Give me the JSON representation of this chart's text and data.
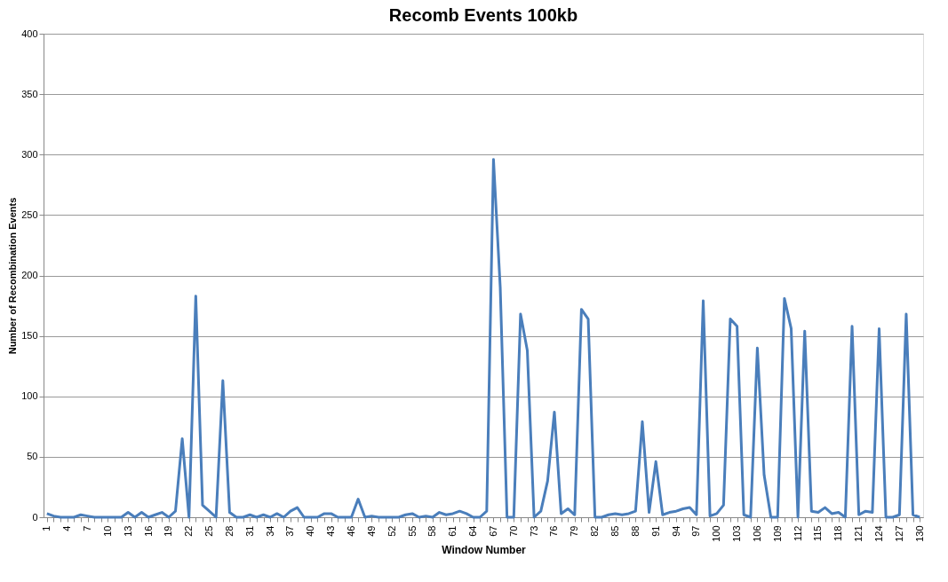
{
  "chart_data": {
    "type": "line",
    "title": "Recomb Events 100kb",
    "xlabel": "Window Number",
    "ylabel": "Number of Recombination Events",
    "categories": [
      "1",
      null,
      null,
      "4",
      null,
      null,
      "7",
      null,
      null,
      "10",
      null,
      null,
      "13",
      null,
      null,
      "16",
      null,
      null,
      "19",
      null,
      null,
      "22",
      null,
      null,
      "25",
      null,
      null,
      "28",
      null,
      null,
      "31",
      null,
      null,
      "34",
      null,
      null,
      "37",
      null,
      null,
      "40",
      null,
      null,
      "43",
      null,
      null,
      "46",
      null,
      null,
      "49",
      null,
      null,
      "52",
      null,
      null,
      "55",
      null,
      null,
      "58",
      null,
      null,
      "61",
      null,
      null,
      "64",
      null,
      null,
      "67",
      null,
      null,
      "70",
      null,
      null,
      "73",
      null,
      null,
      "76",
      null,
      null,
      "79",
      null,
      null,
      "82",
      null,
      null,
      "85",
      null,
      null,
      "88",
      null,
      null,
      "91",
      null,
      null,
      "94",
      null,
      null,
      "97",
      null,
      null,
      "100",
      null,
      null,
      "103",
      null,
      null,
      "106",
      null,
      null,
      "109",
      null,
      null,
      "112",
      null,
      null,
      "115",
      null,
      null,
      "118",
      null,
      null,
      "121",
      null,
      null,
      "124",
      null,
      null,
      "127",
      null,
      null,
      "130"
    ],
    "series": [
      {
        "color": "#4a7ebb",
        "values": [
          3,
          1,
          0,
          0,
          0,
          2,
          1,
          0,
          0,
          0,
          0,
          0,
          4,
          0,
          4,
          0,
          2,
          4,
          0,
          5,
          65,
          0,
          183,
          10,
          5,
          0,
          113,
          4,
          0,
          0,
          2,
          0,
          2,
          0,
          3,
          0,
          5,
          8,
          0,
          0,
          0,
          3,
          3,
          0,
          0,
          0,
          15,
          0,
          1,
          0,
          0,
          0,
          0,
          2,
          3,
          0,
          1,
          0,
          4,
          2,
          3,
          5,
          3,
          0,
          0,
          5,
          296,
          190,
          0,
          0,
          168,
          138,
          0,
          5,
          30,
          87,
          3,
          7,
          2,
          172,
          164,
          0,
          0,
          2,
          3,
          2,
          3,
          5,
          79,
          4,
          46,
          2,
          4,
          5,
          7,
          8,
          2,
          179,
          1,
          3,
          10,
          164,
          158,
          2,
          0,
          140,
          35,
          0,
          0,
          181,
          156,
          0,
          154,
          5,
          4,
          8,
          3,
          4,
          0,
          158,
          2,
          5,
          4,
          156,
          0,
          0,
          2,
          168,
          2,
          0
        ]
      }
    ],
    "ylim": [
      0,
      400
    ],
    "yticks": [
      0,
      50,
      100,
      150,
      200,
      250,
      300,
      350,
      400
    ],
    "grid": "y",
    "marker": "none",
    "line_style": "solid"
  }
}
